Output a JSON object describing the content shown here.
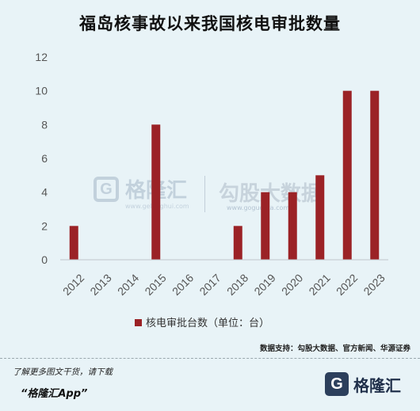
{
  "chart_data": {
    "type": "bar",
    "title": "福岛核事故以来我国核电审批数量",
    "categories": [
      "2012",
      "2013",
      "2014",
      "2015",
      "2016",
      "2017",
      "2018",
      "2019",
      "2020",
      "2021",
      "2022",
      "2023"
    ],
    "series": [
      {
        "name": "核电审批台数（单位：台）",
        "values": [
          2,
          0,
          0,
          8,
          0,
          0,
          2,
          4,
          4,
          5,
          10,
          10
        ],
        "color": "#9b2226"
      }
    ],
    "ylim": [
      0,
      12
    ],
    "yticks": [
      0,
      2,
      4,
      6,
      8,
      10,
      12
    ],
    "grid": false,
    "legend": "bottom-center",
    "xlabel": "",
    "ylabel": ""
  },
  "source": "数据支持：勾股大数据、官方新闻、华源证券",
  "footer": {
    "note": "了解更多图文干货，请下载",
    "app": "“格隆汇App”",
    "brand_mark": "G",
    "brand_name": "格隆汇"
  },
  "watermarks": {
    "left_mark": "G",
    "left_name": "格隆汇",
    "left_url": "www.gelonghui.com",
    "right_name": "勾股大数据",
    "right_url": "www.gogudata.com"
  }
}
